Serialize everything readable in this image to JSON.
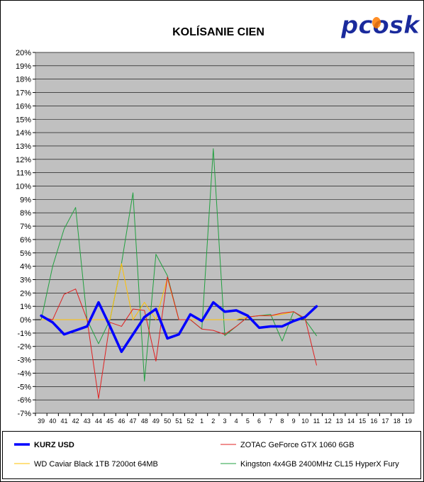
{
  "chart_data": {
    "type": "line",
    "title": "KOLÍSANIE CIEN",
    "logo_text": "pcosk",
    "xlabel": "",
    "ylabel": "",
    "categories": [
      "39",
      "40",
      "41",
      "42",
      "43",
      "44",
      "45",
      "46",
      "47",
      "48",
      "49",
      "50",
      "51",
      "52",
      "1",
      "2",
      "3",
      "4",
      "5",
      "6",
      "7",
      "8",
      "9",
      "10",
      "11",
      "12",
      "13",
      "14",
      "15",
      "16",
      "17",
      "18",
      "19"
    ],
    "ylim": [
      -7,
      20
    ],
    "yticks": [
      "20%",
      "19%",
      "18%",
      "17%",
      "16%",
      "15%",
      "14%",
      "13%",
      "12%",
      "11%",
      "10%",
      "9%",
      "8%",
      "7%",
      "6%",
      "5%",
      "4%",
      "3%",
      "2%",
      "1%",
      "0%",
      "-1%",
      "-2%",
      "-3%",
      "-4%",
      "-5%",
      "-6%",
      "-7%"
    ],
    "grid": true,
    "legend_position": "bottom",
    "series": [
      {
        "name": "KURZ USD",
        "color": "#0000ff",
        "values": [
          0.3,
          -0.2,
          -1.1,
          -0.8,
          -0.5,
          1.3,
          -0.5,
          -2.4,
          -1.1,
          0.2,
          0.8,
          -1.4,
          -1.1,
          0.4,
          -0.1,
          1.3,
          0.6,
          0.7,
          0.3,
          -0.6,
          -0.5,
          -0.5,
          -0.1,
          0.2,
          1.0,
          null,
          null,
          null,
          null,
          null,
          null,
          null,
          null
        ]
      },
      {
        "name": "ZOTAC GeForce GTX 1060 6GB",
        "color": "#e02020",
        "values": [
          0.2,
          0.0,
          1.9,
          2.3,
          0.0,
          -5.9,
          -0.2,
          -0.5,
          0.8,
          0.7,
          -3.1,
          3.2,
          0.0,
          0.0,
          -0.7,
          -0.8,
          -1.1,
          -0.5,
          0.2,
          0.3,
          0.3,
          0.5,
          0.6,
          0.1,
          -3.4,
          null,
          null,
          null,
          null,
          null,
          null,
          null,
          null
        ]
      },
      {
        "name": "WD Caviar Black 1TB 7200ot 64MB",
        "color": "#ffc000",
        "values": [
          0.0,
          0.0,
          0.0,
          0.0,
          0.0,
          0.0,
          0.0,
          4.2,
          0.0,
          1.3,
          0.0,
          3.1,
          0.0,
          0.0,
          0.0,
          0.0,
          0.0,
          0.0,
          0.2,
          0.3,
          0.3,
          0.4,
          0.6,
          null,
          null,
          null,
          null,
          null,
          null,
          null,
          null,
          null,
          null
        ]
      },
      {
        "name": "Kingston 4x4GB 2400MHz CL15 HyperX Fury",
        "color": "#22a040",
        "values": [
          0.0,
          4.0,
          6.8,
          8.4,
          0.0,
          -1.8,
          0.0,
          4.2,
          9.5,
          -4.6,
          4.9,
          3.3,
          0.0,
          0.0,
          -0.7,
          12.8,
          -1.2,
          -0.5,
          0.2,
          0.3,
          0.4,
          -1.6,
          0.6,
          0.0,
          -1.2,
          null,
          null,
          null,
          null,
          null,
          null,
          null,
          null
        ]
      }
    ]
  }
}
